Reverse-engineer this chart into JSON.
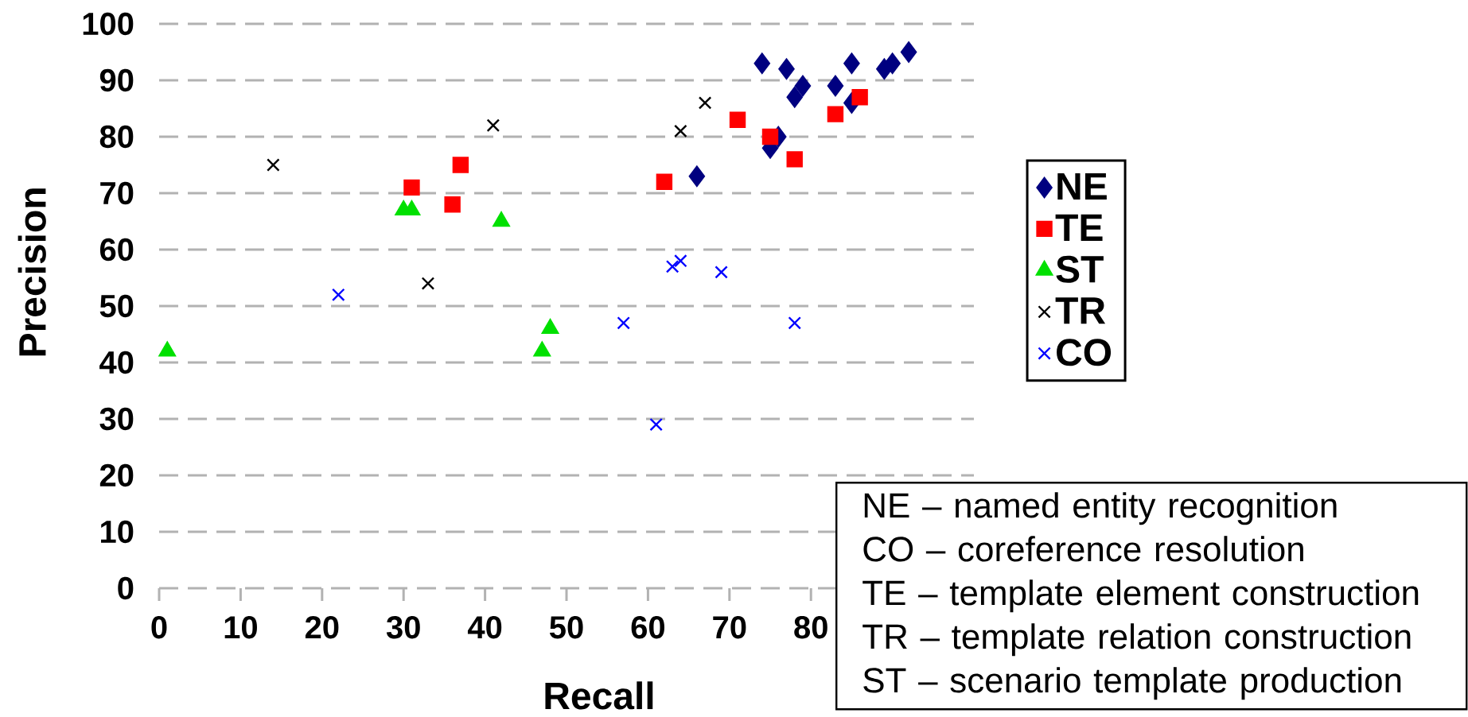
{
  "chart_data": {
    "type": "scatter",
    "xlabel": "Recall",
    "ylabel": "Precision",
    "xlim": [
      0,
      100
    ],
    "ylim": [
      0,
      100
    ],
    "xticks": [
      0,
      10,
      20,
      30,
      40,
      50,
      60,
      70,
      80
    ],
    "yticks": [
      0,
      10,
      20,
      30,
      40,
      50,
      60,
      70,
      80,
      90,
      100
    ],
    "grid": "y",
    "legend": "right",
    "series": [
      {
        "name": "NE",
        "color": "#000080",
        "marker": "diamond",
        "x": [
          74,
          77,
          79,
          78,
          83,
          85,
          85,
          89,
          90,
          92,
          66,
          76,
          75
        ],
        "values": [
          93,
          92,
          89,
          87,
          89,
          93,
          86,
          92,
          93,
          95,
          73,
          80,
          78
        ]
      },
      {
        "name": "TE",
        "color": "#ff0000",
        "marker": "square",
        "x": [
          62,
          71,
          75,
          78,
          83,
          86,
          31,
          36,
          37
        ],
        "values": [
          72,
          83,
          80,
          76,
          84,
          87,
          71,
          68,
          75
        ]
      },
      {
        "name": "ST",
        "color": "#00e000",
        "marker": "triangle",
        "x": [
          30,
          31,
          42,
          48,
          1,
          47
        ],
        "values": [
          67,
          67,
          65,
          46,
          42,
          42
        ]
      },
      {
        "name": "TR",
        "color": "#000000",
        "marker": "cross",
        "x": [
          14,
          41,
          33,
          67,
          64
        ],
        "values": [
          75,
          82,
          54,
          86,
          81
        ]
      },
      {
        "name": "CO",
        "color": "#0000ff",
        "marker": "cross",
        "x": [
          22,
          63,
          64,
          69,
          57,
          78,
          61
        ],
        "values": [
          52,
          57,
          58,
          56,
          47,
          47,
          29
        ]
      }
    ],
    "annotations": [
      "NE – named entity recognition",
      "CO – coreference resolution",
      "TE – template element construction",
      "TR – template relation construction",
      "ST – scenario template production"
    ]
  }
}
